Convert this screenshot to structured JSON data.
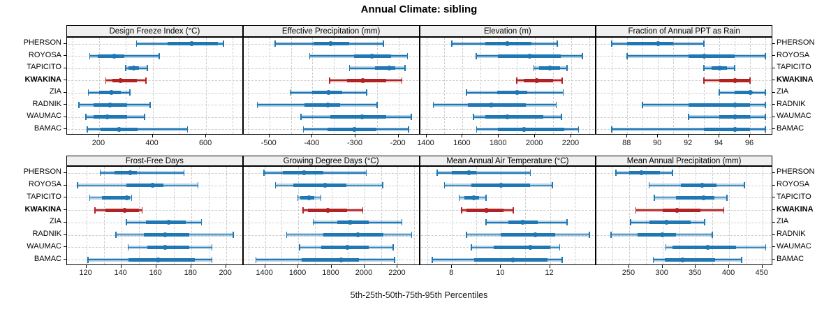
{
  "title": "Annual Climate: sibling",
  "footer_label": "5th-25th-50th-75th-95th Percentiles",
  "sites": [
    "PHERSON",
    "ROYOSA",
    "TAPICITO",
    "KWAKINA",
    "ZIA",
    "RADNIK",
    "WAUMAC",
    "BAMAC"
  ],
  "highlight_site": "KWAKINA",
  "colors": {
    "series_normal": "#1f77b4",
    "series_highlight": "#b22222",
    "band_opacity": 0.32,
    "grid": "#cdcdcd",
    "strip_bg": "#f0f0f0",
    "border": "#000000",
    "text": "#000000"
  },
  "chart_data": {
    "type": "percentile-interval-dotplot",
    "title": "Annual Climate: sibling",
    "xlabel": "5th-25th-50th-75th-95th Percentiles",
    "percentiles_shown": [
      5,
      25,
      50,
      75,
      95
    ],
    "rows": [
      "PHERSON",
      "ROYOSA",
      "TAPICITO",
      "KWAKINA",
      "ZIA",
      "RADNIK",
      "WAUMAC",
      "BAMAC"
    ],
    "highlight_row": "KWAKINA",
    "panels": [
      {
        "title": "Design Freeze Index (°C)",
        "xlim": [
          80,
          740
        ],
        "ticks": [
          200,
          400,
          600
        ],
        "grid_step": 100,
        "values": [
          [
            340,
            455,
            545,
            645,
            665
          ],
          [
            165,
            195,
            255,
            295,
            425
          ],
          [
            300,
            310,
            330,
            350,
            380
          ],
          [
            225,
            250,
            280,
            340,
            375
          ],
          [
            160,
            200,
            245,
            280,
            315
          ],
          [
            125,
            180,
            240,
            305,
            390
          ],
          [
            150,
            180,
            230,
            305,
            370
          ],
          [
            155,
            205,
            275,
            345,
            530
          ]
        ]
      },
      {
        "title": "Effective Precipitation (mm)",
        "xlim": [
          -560,
          -150
        ],
        "ticks": [
          -500,
          -400,
          -300,
          -200
        ],
        "grid_step": 50,
        "values": [
          [
            -487,
            -398,
            -357,
            -314,
            -235
          ],
          [
            -406,
            -304,
            -262,
            -218,
            -179
          ],
          [
            -314,
            -255,
            -222,
            -207,
            -185
          ],
          [
            -360,
            -320,
            -283,
            -228,
            -192
          ],
          [
            -452,
            -400,
            -363,
            -331,
            -274
          ],
          [
            -528,
            -419,
            -364,
            -336,
            -250
          ],
          [
            -427,
            -358,
            -285,
            -228,
            -170
          ],
          [
            -421,
            -365,
            -303,
            -251,
            -177
          ]
        ]
      },
      {
        "title": "Elevation (m)",
        "xlim": [
          1365,
          2340
        ],
        "ticks": [
          1400,
          1600,
          1800,
          2000,
          2200
        ],
        "grid_step": 100,
        "values": [
          [
            1541,
            1727,
            1848,
            1981,
            2122
          ],
          [
            1676,
            1797,
            1970,
            2144,
            2263
          ],
          [
            1994,
            2022,
            2083,
            2137,
            2176
          ],
          [
            1900,
            1938,
            2009,
            2099,
            2150
          ],
          [
            1622,
            1791,
            1900,
            1958,
            2156
          ],
          [
            1438,
            1631,
            1759,
            1951,
            2118
          ],
          [
            1660,
            1727,
            1849,
            2047,
            2147
          ],
          [
            1678,
            1797,
            1938,
            2160,
            2240
          ]
        ]
      },
      {
        "title": "Fraction of Annual PPT as Rain",
        "xlim": [
          86,
          97.5
        ],
        "ticks": [
          88,
          90,
          92,
          94,
          96
        ],
        "grid_step": 1,
        "values": [
          [
            87,
            88,
            90,
            91,
            93
          ],
          [
            88,
            92,
            93,
            95,
            97
          ],
          [
            93,
            93.5,
            94,
            94.5,
            95
          ],
          [
            93,
            94,
            95,
            96,
            96
          ],
          [
            94,
            95,
            96,
            96,
            97
          ],
          [
            89,
            92,
            95,
            96,
            97
          ],
          [
            92,
            94,
            95,
            96,
            97
          ],
          [
            87,
            93,
            95,
            96,
            97
          ]
        ]
      },
      {
        "title": "Frost-Free Days",
        "xlim": [
          109,
          210
        ],
        "ticks": [
          120,
          140,
          160,
          180,
          200
        ],
        "grid_step": 10,
        "values": [
          [
            128,
            136,
            145,
            149,
            176
          ],
          [
            115,
            143,
            158,
            164,
            184
          ],
          [
            122,
            129,
            143,
            145,
            146
          ],
          [
            125,
            131,
            142,
            150,
            152
          ],
          [
            143,
            154,
            167,
            177,
            186
          ],
          [
            137,
            153,
            165,
            179,
            204
          ],
          [
            144,
            155,
            165,
            179,
            192
          ],
          [
            121,
            144,
            161,
            182,
            192
          ]
        ]
      },
      {
        "title": "Growing Degree Days (°C)",
        "xlim": [
          1270,
          2335
        ],
        "ticks": [
          1400,
          1600,
          1800,
          2000,
          2200
        ],
        "grid_step": 100,
        "values": [
          [
            1393,
            1505,
            1636,
            1751,
            2010
          ],
          [
            1463,
            1571,
            1762,
            1891,
            2109
          ],
          [
            1597,
            1613,
            1664,
            1695,
            1737
          ],
          [
            1630,
            1660,
            1780,
            1895,
            1990
          ],
          [
            1690,
            1835,
            1915,
            2025,
            2225
          ],
          [
            1530,
            1750,
            1960,
            2115,
            2285
          ],
          [
            1608,
            1737,
            1898,
            2025,
            2172
          ],
          [
            1345,
            1620,
            1860,
            1965,
            2180
          ]
        ]
      },
      {
        "title": "Mean Annual Air Temperature (°C)",
        "xlim": [
          6.7,
          13.9
        ],
        "ticks": [
          8,
          10,
          12
        ],
        "grid_step": 1,
        "values": [
          [
            7.4,
            8.0,
            8.7,
            9.0,
            11.2
          ],
          [
            7.7,
            8.8,
            10.0,
            11.2,
            12.1
          ],
          [
            8.3,
            8.5,
            8.9,
            9.1,
            9.4
          ],
          [
            8.4,
            8.6,
            9.4,
            10.1,
            10.5
          ],
          [
            9.4,
            10.3,
            10.9,
            11.5,
            12.7
          ],
          [
            8.6,
            10.0,
            11.4,
            12.2,
            13.6
          ],
          [
            8.8,
            9.7,
            11.2,
            12.0,
            12.4
          ],
          [
            7.2,
            8.9,
            10.5,
            11.9,
            12.5
          ]
        ]
      },
      {
        "title": "Mean Annual Precipitation (mm)",
        "xlim": [
          201,
          466
        ],
        "ticks": [
          250,
          300,
          350,
          400,
          450
        ],
        "grid_step": 25,
        "values": [
          [
            230,
            250,
            268,
            296,
            315
          ],
          [
            280,
            328,
            360,
            381,
            423
          ],
          [
            288,
            320,
            362,
            378,
            397
          ],
          [
            260,
            300,
            322,
            357,
            392
          ],
          [
            252,
            280,
            306,
            342,
            363
          ],
          [
            223,
            263,
            300,
            320,
            375
          ],
          [
            305,
            315,
            368,
            410,
            455
          ],
          [
            286,
            304,
            330,
            379,
            419
          ]
        ]
      }
    ]
  }
}
